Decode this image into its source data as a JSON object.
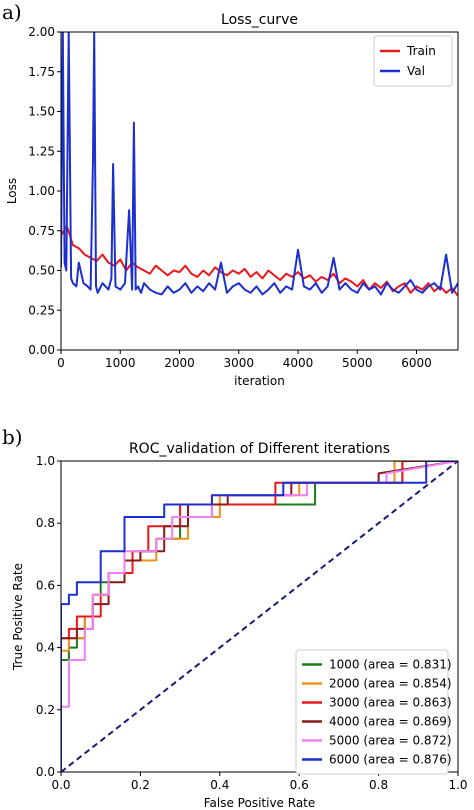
{
  "panel_a": {
    "label": "a)"
  },
  "panel_b": {
    "label": "b)"
  },
  "chart_data": [
    {
      "type": "line",
      "title": "Loss_curve",
      "xlabel": "iteration",
      "ylabel": "Loss",
      "xlim": [
        0,
        6700
      ],
      "ylim": [
        0,
        2.0
      ],
      "xticks": [
        "0",
        "1000",
        "2000",
        "3000",
        "4000",
        "5000",
        "6000"
      ],
      "xtick_values": [
        0,
        1000,
        2000,
        3000,
        4000,
        5000,
        6000
      ],
      "yticks": [
        "0.00",
        "0.25",
        "0.50",
        "0.75",
        "1.00",
        "1.25",
        "1.50",
        "1.75",
        "2.00"
      ],
      "ytick_values": [
        0,
        0.25,
        0.5,
        0.75,
        1.0,
        1.25,
        1.5,
        1.75,
        2.0
      ],
      "legend": "top-right",
      "series": [
        {
          "name": "Train",
          "color": "#e8191b",
          "x": [
            0,
            100,
            200,
            300,
            400,
            500,
            600,
            700,
            800,
            900,
            1000,
            1100,
            1200,
            1300,
            1400,
            1500,
            1600,
            1700,
            1800,
            1900,
            2000,
            2100,
            2200,
            2300,
            2400,
            2500,
            2600,
            2700,
            2800,
            2900,
            3000,
            3100,
            3200,
            3300,
            3400,
            3500,
            3600,
            3700,
            3800,
            3900,
            4000,
            4100,
            4200,
            4300,
            4400,
            4500,
            4600,
            4700,
            4800,
            4900,
            5000,
            5100,
            5200,
            5300,
            5400,
            5500,
            5600,
            5700,
            5800,
            5900,
            6000,
            6100,
            6200,
            6300,
            6400,
            6500,
            6600,
            6700
          ],
          "values": [
            0.72,
            0.78,
            0.66,
            0.64,
            0.6,
            0.58,
            0.56,
            0.6,
            0.55,
            0.53,
            0.57,
            0.5,
            0.55,
            0.52,
            0.5,
            0.48,
            0.53,
            0.5,
            0.47,
            0.5,
            0.49,
            0.53,
            0.48,
            0.46,
            0.5,
            0.47,
            0.52,
            0.49,
            0.47,
            0.5,
            0.48,
            0.51,
            0.46,
            0.49,
            0.45,
            0.5,
            0.47,
            0.44,
            0.48,
            0.46,
            0.49,
            0.45,
            0.47,
            0.43,
            0.46,
            0.44,
            0.48,
            0.42,
            0.45,
            0.43,
            0.4,
            0.44,
            0.38,
            0.42,
            0.39,
            0.43,
            0.37,
            0.4,
            0.42,
            0.36,
            0.4,
            0.38,
            0.42,
            0.37,
            0.4,
            0.36,
            0.39,
            0.34
          ]
        },
        {
          "name": "Val",
          "color": "#1c2fd0",
          "x": [
            0,
            30,
            60,
            90,
            130,
            170,
            200,
            260,
            300,
            380,
            450,
            500,
            540,
            560,
            590,
            620,
            700,
            800,
            850,
            880,
            920,
            1000,
            1080,
            1150,
            1200,
            1230,
            1260,
            1300,
            1350,
            1400,
            1500,
            1600,
            1700,
            1800,
            1900,
            2000,
            2100,
            2200,
            2300,
            2400,
            2500,
            2600,
            2700,
            2800,
            2900,
            3000,
            3100,
            3200,
            3300,
            3400,
            3500,
            3600,
            3700,
            3800,
            3900,
            4000,
            4100,
            4200,
            4300,
            4400,
            4500,
            4600,
            4700,
            4800,
            4900,
            5000,
            5100,
            5200,
            5300,
            5400,
            5500,
            5600,
            5700,
            5800,
            5900,
            6000,
            6100,
            6200,
            6300,
            6400,
            6500,
            6600,
            6700
          ],
          "values": [
            0.52,
            2.0,
            0.55,
            0.5,
            2.0,
            0.45,
            0.42,
            0.4,
            0.55,
            0.42,
            0.4,
            0.38,
            1.2,
            2.0,
            0.4,
            0.36,
            0.42,
            0.38,
            0.45,
            1.17,
            0.4,
            0.38,
            0.42,
            0.88,
            0.38,
            1.43,
            0.38,
            0.4,
            0.36,
            0.42,
            0.38,
            0.36,
            0.35,
            0.4,
            0.36,
            0.38,
            0.42,
            0.36,
            0.4,
            0.37,
            0.42,
            0.38,
            0.55,
            0.36,
            0.4,
            0.42,
            0.38,
            0.36,
            0.4,
            0.35,
            0.38,
            0.42,
            0.36,
            0.4,
            0.38,
            0.63,
            0.4,
            0.38,
            0.42,
            0.36,
            0.4,
            0.58,
            0.38,
            0.42,
            0.38,
            0.36,
            0.42,
            0.38,
            0.4,
            0.35,
            0.42,
            0.38,
            0.36,
            0.4,
            0.44,
            0.38,
            0.36,
            0.4,
            0.42,
            0.38,
            0.6,
            0.36,
            0.42
          ]
        }
      ]
    },
    {
      "type": "line",
      "title": "ROC_validation of Different iterations",
      "xlabel": "False Positive Rate",
      "ylabel": "True Positive Rate",
      "xlim": [
        0,
        1.0
      ],
      "ylim": [
        0,
        1.0
      ],
      "xticks": [
        "0.0",
        "0.2",
        "0.4",
        "0.6",
        "0.8",
        "1.0"
      ],
      "xtick_values": [
        0,
        0.2,
        0.4,
        0.6,
        0.8,
        1.0
      ],
      "yticks": [
        "0.0",
        "0.2",
        "0.4",
        "0.6",
        "0.8",
        "1.0"
      ],
      "ytick_values": [
        0,
        0.2,
        0.4,
        0.6,
        0.8,
        1.0
      ],
      "legend": "bottom-right",
      "diagonal": {
        "color": "#1a1a7a",
        "style": "dashed"
      },
      "series": [
        {
          "name": "1000 (area = 0.831)",
          "color": "#1e7b1e",
          "x": [
            0,
            0,
            0.02,
            0.02,
            0.04,
            0.04,
            0.06,
            0.06,
            0.08,
            0.08,
            0.1,
            0.1,
            0.12,
            0.12,
            0.16,
            0.16,
            0.2,
            0.2,
            0.24,
            0.24,
            0.3,
            0.3,
            0.38,
            0.38,
            0.64,
            0.64,
            0.86,
            0.86,
            1.0
          ],
          "values": [
            0,
            0.36,
            0.36,
            0.4,
            0.4,
            0.43,
            0.43,
            0.5,
            0.5,
            0.57,
            0.57,
            0.61,
            0.61,
            0.64,
            0.64,
            0.68,
            0.68,
            0.71,
            0.71,
            0.75,
            0.75,
            0.82,
            0.82,
            0.86,
            0.86,
            0.93,
            0.93,
            1.0,
            1.0
          ]
        },
        {
          "name": "2000 (area = 0.854)",
          "color": "#f0901e",
          "x": [
            0,
            0,
            0.02,
            0.02,
            0.06,
            0.06,
            0.08,
            0.08,
            0.12,
            0.12,
            0.16,
            0.16,
            0.24,
            0.24,
            0.32,
            0.32,
            0.4,
            0.4,
            0.6,
            0.6,
            0.84,
            0.84,
            1.0
          ],
          "values": [
            0,
            0.39,
            0.39,
            0.43,
            0.43,
            0.5,
            0.5,
            0.57,
            0.57,
            0.64,
            0.64,
            0.68,
            0.68,
            0.75,
            0.75,
            0.82,
            0.82,
            0.89,
            0.89,
            0.93,
            0.93,
            1.0,
            1.0
          ]
        },
        {
          "name": "3000 (area = 0.863)",
          "color": "#e8191b",
          "x": [
            0,
            0,
            0.02,
            0.02,
            0.04,
            0.04,
            0.1,
            0.1,
            0.12,
            0.12,
            0.18,
            0.18,
            0.22,
            0.22,
            0.3,
            0.3,
            0.38,
            0.38,
            0.54,
            0.54,
            0.86,
            0.86,
            1.0
          ],
          "values": [
            0,
            0.43,
            0.43,
            0.46,
            0.46,
            0.5,
            0.5,
            0.57,
            0.57,
            0.64,
            0.64,
            0.71,
            0.71,
            0.79,
            0.79,
            0.86,
            0.86,
            0.86,
            0.86,
            0.93,
            0.93,
            1.0,
            1.0
          ]
        },
        {
          "name": "4000 (area = 0.869)",
          "color": "#8b1a1a",
          "x": [
            0,
            0,
            0.04,
            0.04,
            0.08,
            0.08,
            0.12,
            0.12,
            0.16,
            0.16,
            0.2,
            0.2,
            0.26,
            0.26,
            0.32,
            0.32,
            0.42,
            0.42,
            0.58,
            0.58,
            0.8,
            0.8,
            1.0
          ],
          "values": [
            0,
            0.43,
            0.43,
            0.46,
            0.46,
            0.54,
            0.54,
            0.61,
            0.61,
            0.68,
            0.68,
            0.71,
            0.71,
            0.79,
            0.79,
            0.86,
            0.86,
            0.89,
            0.89,
            0.93,
            0.93,
            0.96,
            1.0
          ]
        },
        {
          "name": "5000 (area = 0.872)",
          "color": "#ee82ee",
          "x": [
            0,
            0,
            0.02,
            0.02,
            0.06,
            0.06,
            0.08,
            0.08,
            0.12,
            0.12,
            0.16,
            0.16,
            0.24,
            0.24,
            0.28,
            0.28,
            0.38,
            0.38,
            0.62,
            0.62,
            0.82,
            0.82,
            1.0
          ],
          "values": [
            0,
            0.21,
            0.21,
            0.36,
            0.36,
            0.46,
            0.46,
            0.57,
            0.57,
            0.64,
            0.64,
            0.71,
            0.71,
            0.75,
            0.75,
            0.82,
            0.82,
            0.89,
            0.89,
            0.93,
            0.93,
            0.96,
            1.0
          ]
        },
        {
          "name": "6000 (area = 0.876)",
          "color": "#1c2fd0",
          "x": [
            0,
            0,
            0.02,
            0.02,
            0.04,
            0.04,
            0.1,
            0.1,
            0.16,
            0.16,
            0.2,
            0.2,
            0.26,
            0.26,
            0.38,
            0.38,
            0.56,
            0.56,
            0.92,
            0.92,
            1.0
          ],
          "values": [
            0,
            0.54,
            0.54,
            0.57,
            0.57,
            0.61,
            0.61,
            0.71,
            0.71,
            0.82,
            0.82,
            0.82,
            0.82,
            0.86,
            0.86,
            0.89,
            0.89,
            0.93,
            0.93,
            1.0,
            1.0
          ]
        }
      ]
    }
  ]
}
